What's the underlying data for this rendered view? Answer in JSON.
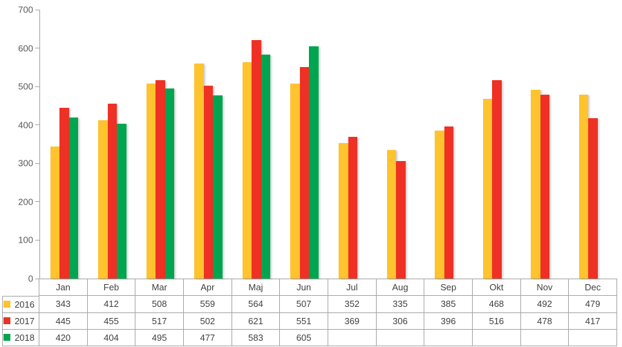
{
  "chart_data": {
    "type": "bar",
    "title": "",
    "xlabel": "",
    "ylabel": "",
    "categories": [
      "Jan",
      "Feb",
      "Mar",
      "Apr",
      "Maj",
      "Jun",
      "Jul",
      "Aug",
      "Sep",
      "Okt",
      "Nov",
      "Dec"
    ],
    "series": [
      {
        "name": "2016",
        "color": "#FEC32D",
        "values": [
          343,
          412,
          508,
          559,
          564,
          507,
          352,
          335,
          385,
          468,
          492,
          479
        ]
      },
      {
        "name": "2017",
        "color": "#EE3124",
        "values": [
          445,
          455,
          517,
          502,
          621,
          551,
          369,
          306,
          396,
          516,
          478,
          417
        ]
      },
      {
        "name": "2018",
        "color": "#00A64F",
        "values": [
          420,
          404,
          495,
          477,
          583,
          605,
          null,
          null,
          null,
          null,
          null,
          null
        ]
      }
    ],
    "ylim": [
      0,
      700
    ],
    "ytick_labels": [
      "0",
      "100",
      "200",
      "300",
      "400",
      "500",
      "600",
      "700"
    ],
    "grid": false,
    "legend_position": "table-left"
  },
  "colors": {
    "axis_line": "#A6A6A6",
    "axis_label_text": "#595959",
    "table_border": "#A6A6A6",
    "table_text": "#3F3F3F"
  }
}
